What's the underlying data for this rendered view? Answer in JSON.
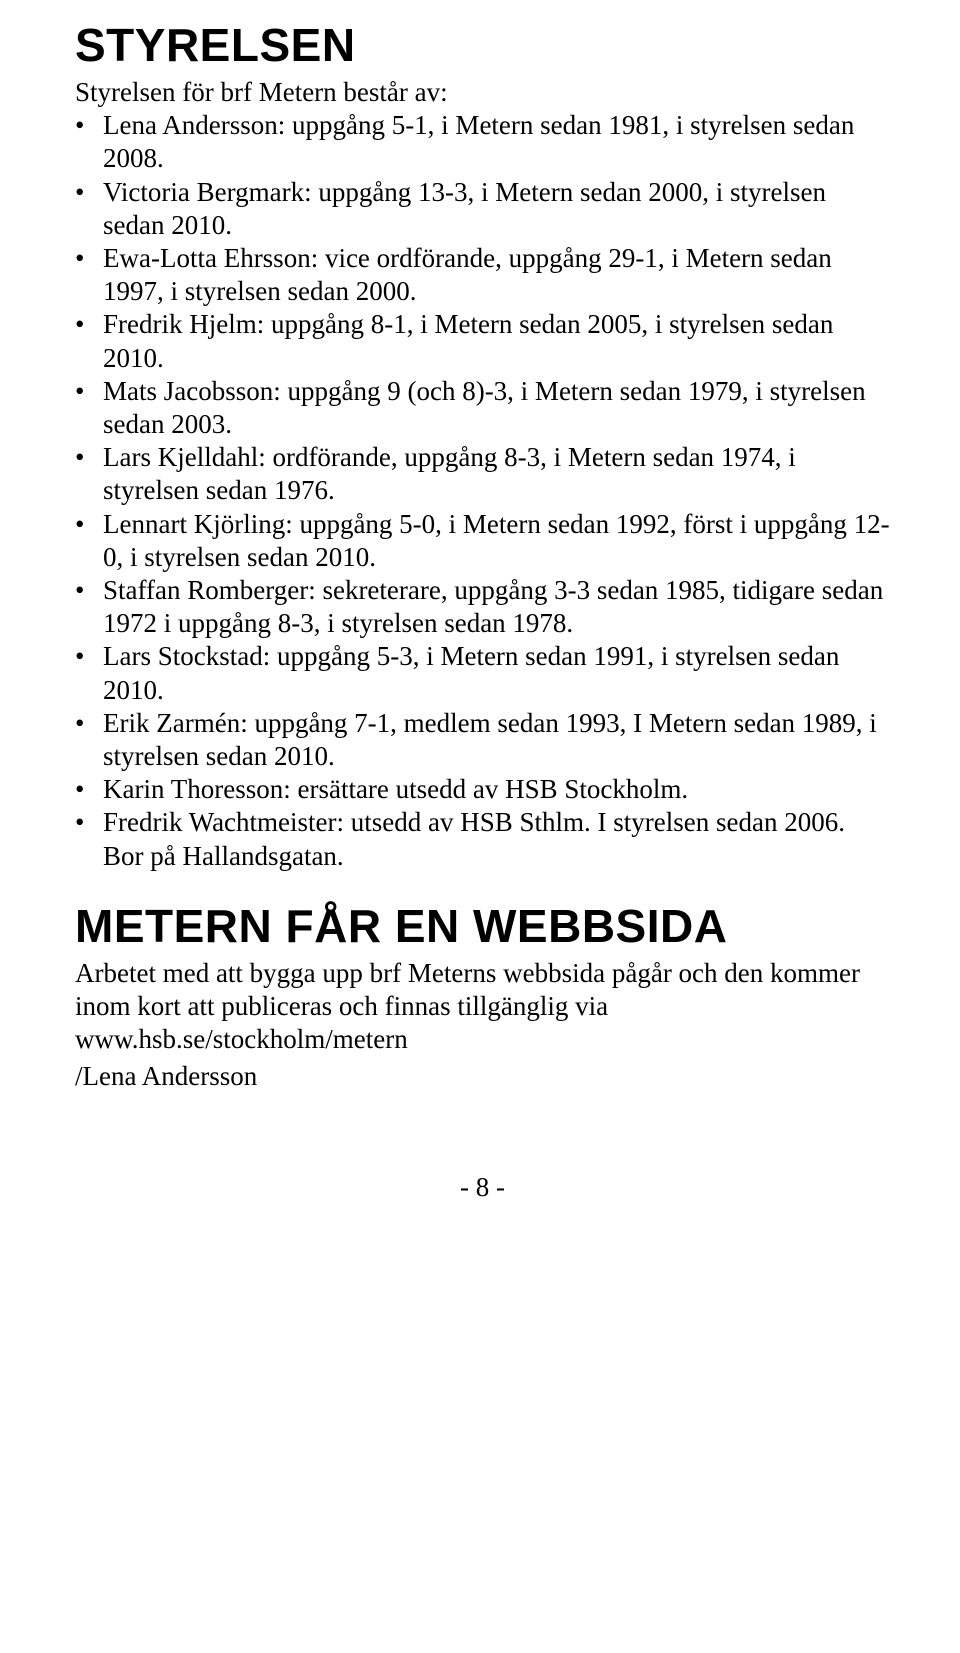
{
  "section1": {
    "heading": "STYRELSEN",
    "intro": "Styrelsen för brf Metern består av:",
    "items": [
      "Lena Andersson: uppgång 5-1, i Metern sedan 1981, i styrelsen sedan 2008.",
      "Victoria Bergmark: uppgång 13-3, i Metern sedan 2000, i styrelsen sedan 2010.",
      "Ewa-Lotta Ehrsson: vice ordförande, uppgång 29-1, i Metern sedan 1997, i styrelsen sedan 2000.",
      "Fredrik Hjelm: uppgång 8-1, i Metern sedan 2005, i styrelsen sedan 2010.",
      "Mats Jacobsson: uppgång 9 (och 8)-3, i Metern sedan 1979, i styrelsen sedan 2003.",
      "Lars Kjelldahl: ordförande, uppgång 8-3, i Metern sedan 1974, i styrelsen sedan 1976.",
      "Lennart Kjörling: uppgång 5-0, i Metern sedan 1992, först i uppgång 12-0, i styrelsen sedan 2010.",
      "Staffan Romberger: sekreterare, uppgång 3-3 sedan 1985, tidigare sedan 1972 i uppgång 8-3, i styrelsen sedan 1978.",
      "Lars Stockstad: uppgång 5-3, i Metern sedan 1991, i styrelsen sedan 2010.",
      "Erik Zarmén: uppgång 7-1, medlem sedan 1993, I Metern sedan 1989, i styrelsen sedan 2010.",
      "Karin Thoresson: ersättare utsedd av HSB Stockholm.",
      "Fredrik Wachtmeister: utsedd av HSB Sthlm. I styrelsen sedan 2006. Bor på Hallandsgatan."
    ]
  },
  "section2": {
    "heading": "METERN FÅR EN WEBBSIDA",
    "body": "Arbetet med att bygga upp brf Meterns webbsida pågår och den kommer inom kort att publiceras och finnas tillgänglig via www.hsb.se/stockholm/metern",
    "author": "/Lena Andersson"
  },
  "page_number": "- 8 -",
  "bullet_char": "•"
}
